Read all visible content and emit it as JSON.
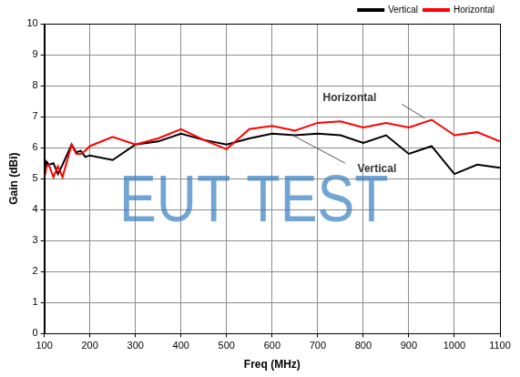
{
  "chart_data": {
    "type": "line",
    "x_label": "Freq (MHz)",
    "y_label": "Gain (dBi)",
    "x": [
      100,
      105,
      110,
      120,
      130,
      140,
      160,
      170,
      180,
      190,
      200,
      250,
      300,
      350,
      400,
      450,
      500,
      550,
      600,
      650,
      700,
      750,
      800,
      850,
      900,
      950,
      1000,
      1050,
      1100
    ],
    "series": [
      {
        "name": "Vertical",
        "color": "#000000",
        "marker": "none",
        "line_style": "solid",
        "values": [
          5.0,
          5.55,
          5.45,
          5.5,
          5.15,
          5.45,
          6.1,
          5.85,
          5.9,
          5.7,
          5.75,
          5.6,
          6.1,
          6.2,
          6.45,
          6.25,
          6.1,
          6.3,
          6.45,
          6.4,
          6.45,
          6.4,
          6.15,
          6.4,
          5.8,
          6.05,
          5.15,
          5.45,
          5.35
        ]
      },
      {
        "name": "Horizontal",
        "color": "#ff0000",
        "marker": "none",
        "line_style": "solid",
        "values": [
          5.05,
          5.4,
          5.45,
          5.05,
          5.4,
          5.05,
          6.1,
          5.8,
          5.8,
          5.9,
          6.05,
          6.35,
          6.1,
          6.3,
          6.6,
          6.25,
          5.95,
          6.6,
          6.7,
          6.55,
          6.8,
          6.85,
          6.65,
          6.8,
          6.65,
          6.9,
          6.4,
          6.5,
          6.2
        ]
      }
    ],
    "xlim": [
      100,
      1100
    ],
    "xticks": [
      100,
      200,
      300,
      400,
      500,
      600,
      700,
      800,
      900,
      1000,
      1100
    ],
    "ylim": [
      0,
      10
    ],
    "yticks": [
      0,
      1,
      2,
      3,
      4,
      5,
      6,
      7,
      8,
      9,
      10
    ],
    "grid": true,
    "legend": "top-right",
    "annotations": [
      "Horizontal",
      "Vertical",
      "EUT TEST"
    ]
  }
}
